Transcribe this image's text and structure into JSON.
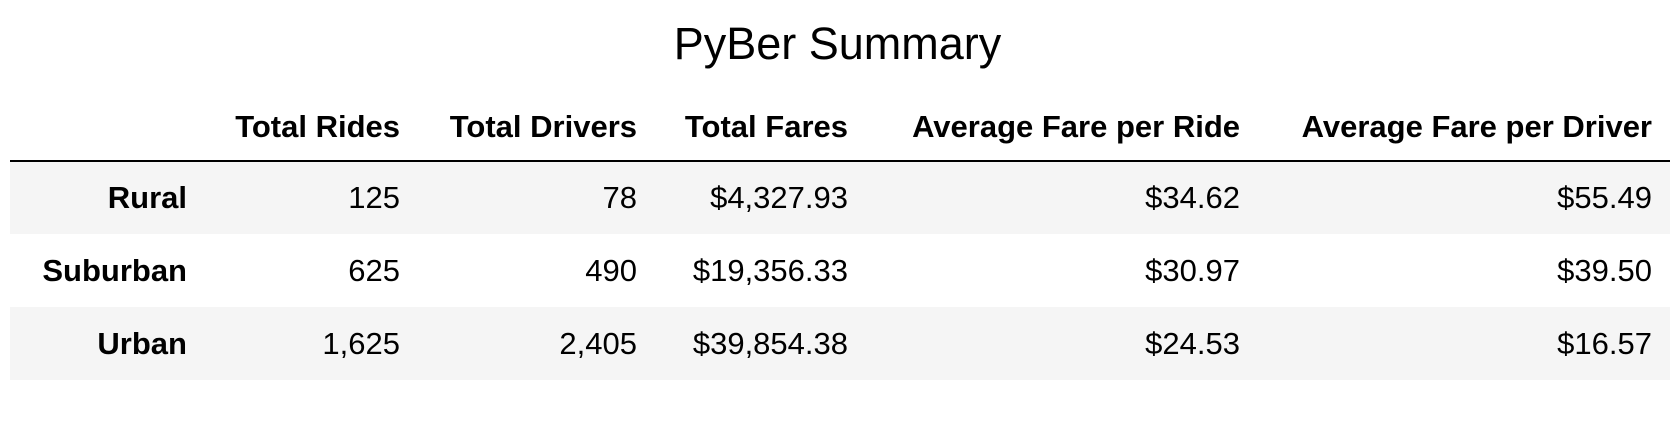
{
  "title": "PyBer Summary",
  "columns": [
    "",
    "Total Rides",
    "Total Drivers",
    "Total Fares",
    "Average Fare per Ride",
    "Average Fare per Driver"
  ],
  "rows": [
    {
      "label": "Rural",
      "total_rides": "125",
      "total_drivers": "78",
      "total_fares": "$4,327.93",
      "avg_fare_per_ride": "$34.62",
      "avg_fare_per_driver": "$55.49"
    },
    {
      "label": "Suburban",
      "total_rides": "625",
      "total_drivers": "490",
      "total_fares": "$19,356.33",
      "avg_fare_per_ride": "$30.97",
      "avg_fare_per_driver": "$39.50"
    },
    {
      "label": "Urban",
      "total_rides": "1,625",
      "total_drivers": "2,405",
      "total_fares": "$39,854.38",
      "avg_fare_per_ride": "$24.53",
      "avg_fare_per_driver": "$16.57"
    }
  ],
  "colors": {
    "text": "#000000",
    "background": "#ffffff",
    "row_stripe": "#f5f5f5",
    "header_rule": "#000000"
  }
}
